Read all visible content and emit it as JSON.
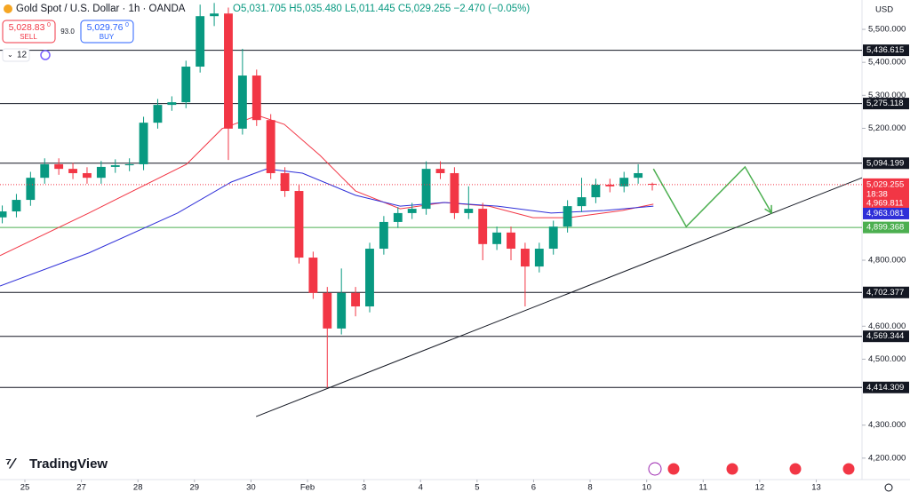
{
  "chart_data": {
    "type": "candlestick",
    "header": {
      "symbol": "Gold Spot / U.S. Dollar · 1h · OANDA",
      "ohlc": "O5,031.705 H5,035.480 L5,011.445 C5,029.255 −2.470 (−0.05%)",
      "sell_price": "5,028.83",
      "sell_sup": "0",
      "sell": "SELL",
      "spread": "93.0",
      "buy_price": "5,029.76",
      "buy_sup": "0",
      "buy": "BUY",
      "indicators": "12",
      "currency": "USD",
      "brand": "TradingView"
    },
    "xlim": [
      -0.44,
      14.81
    ],
    "ylim": [
      4135,
      5589
    ],
    "xticks": [
      {
        "value": 0,
        "label": "25"
      },
      {
        "value": 1,
        "label": "27"
      },
      {
        "value": 2,
        "label": "28"
      },
      {
        "value": 3,
        "label": "29"
      },
      {
        "value": 4,
        "label": "30"
      },
      {
        "value": 5,
        "label": "Feb"
      },
      {
        "value": 6,
        "label": "3"
      },
      {
        "value": 7,
        "label": "4"
      },
      {
        "value": 8,
        "label": "5"
      },
      {
        "value": 9,
        "label": "6"
      },
      {
        "value": 10,
        "label": "8"
      },
      {
        "value": 11,
        "label": "10"
      },
      {
        "value": 12,
        "label": "11"
      },
      {
        "value": 13,
        "label": "12"
      },
      {
        "value": 14,
        "label": "13"
      }
    ],
    "yticks": [
      {
        "value": 5500,
        "label": "5,500.000"
      },
      {
        "value": 5400,
        "label": "5,400.000"
      },
      {
        "value": 5300,
        "label": "5,300.000"
      },
      {
        "value": 5200,
        "label": "5,200.000"
      },
      {
        "value": 4800,
        "label": "4,800.000"
      },
      {
        "value": 4600,
        "label": "4,600.000"
      },
      {
        "value": 4500,
        "label": "4,500.000"
      },
      {
        "value": 4300,
        "label": "4,300.000"
      },
      {
        "value": 4200,
        "label": "4,200.000"
      }
    ],
    "up_color": "#089981",
    "down_color": "#f23645",
    "x": [
      -0.4,
      -0.15,
      0.1,
      0.35,
      0.6,
      0.85,
      1.1,
      1.35,
      1.6,
      1.85,
      2.1,
      2.35,
      2.6,
      2.85,
      3.1,
      3.35,
      3.6,
      3.85,
      4.1,
      4.35,
      4.6,
      4.85,
      5.1,
      5.35,
      5.6,
      5.85,
      6.1,
      6.35,
      6.6,
      6.85,
      7.1,
      7.35,
      7.6,
      7.85,
      8.1,
      8.35,
      8.6,
      8.85,
      9.1,
      9.35,
      9.6,
      9.85,
      10.1,
      10.35,
      10.6,
      10.85,
      11.1
    ],
    "open": [
      4930,
      4948,
      4983,
      5050,
      5091,
      5077,
      5064,
      5050,
      5083,
      5088,
      5091,
      5217,
      5271,
      5279,
      5387,
      5540,
      5548,
      5199,
      5360,
      5225,
      5064,
      5010,
      4808,
      4701,
      4593,
      4701,
      4660,
      4835,
      4916,
      4943,
      4956,
      5077,
      5064,
      4943,
      4956,
      4849,
      4884,
      4835,
      4781,
      4835,
      4902,
      4964,
      4991,
      5029,
      5024,
      5050,
      5031.705
    ],
    "high": [
      4966,
      5001,
      5068,
      5109,
      5109,
      5095,
      5082,
      5101,
      5106,
      5109,
      5235,
      5289,
      5297,
      5405,
      5575,
      5580,
      5566,
      5441,
      5378,
      5243,
      5082,
      5028,
      4826,
      4719,
      4775,
      4719,
      4853,
      4934,
      4961,
      4974,
      5100,
      5100,
      5082,
      5024,
      4974,
      4902,
      4902,
      4853,
      4853,
      4920,
      4982,
      5050,
      5047,
      5047,
      5068,
      5091,
      5035.48
    ],
    "low": [
      4912,
      4930,
      4965,
      5032,
      5059,
      5046,
      5032,
      5032,
      5065,
      5070,
      5073,
      5199,
      5253,
      5261,
      5369,
      5510,
      5104,
      5181,
      5207,
      5046,
      4992,
      4790,
      4683,
      4414,
      4575,
      4630,
      4642,
      4817,
      4898,
      4925,
      4938,
      5046,
      4925,
      4925,
      4800,
      4831,
      4800,
      4660,
      4763,
      4817,
      4884,
      4946,
      4973,
      5006,
      5006,
      5032,
      5011.445
    ],
    "close": [
      4948,
      4983,
      5050,
      5091,
      5077,
      5064,
      5050,
      5083,
      5088,
      5091,
      5217,
      5271,
      5279,
      5387,
      5540,
      5548,
      5199,
      5360,
      5225,
      5064,
      5010,
      4808,
      4701,
      4593,
      4701,
      4660,
      4835,
      4916,
      4943,
      4956,
      5077,
      5064,
      4943,
      4956,
      4849,
      4884,
      4835,
      4781,
      4835,
      4902,
      4964,
      4991,
      5029,
      5024,
      5050,
      5064,
      5029.255
    ],
    "last_price": {
      "value": 5029.255,
      "label": "5,029.255",
      "countdown": "18:38"
    },
    "series": [
      {
        "color": "#f23645",
        "x": [
          -0.44,
          1.13,
          2.86,
          3.49,
          4.12,
          4.59,
          5.22,
          5.85,
          6.64,
          7.42,
          8.21,
          8.99,
          9.62,
          10.57,
          11.12
        ],
        "values": [
          4814,
          4943,
          5091,
          5199,
          5239,
          5212,
          5118,
          5010,
          4956,
          4975,
          4964,
          4929,
          4929,
          4951,
          4970
        ],
        "price_tag": {
          "value": 4969.811,
          "label": "4,969.811"
        }
      },
      {
        "color": "#2f2fd8",
        "x": [
          -0.44,
          1.13,
          2.7,
          3.65,
          4.28,
          4.91,
          5.85,
          6.64,
          7.42,
          8.36,
          9.31,
          10.25,
          11.12
        ],
        "values": [
          4722,
          4822,
          4943,
          5037,
          5077,
          5064,
          4997,
          4964,
          4975,
          4964,
          4943,
          4951,
          4964
        ],
        "price_tag": {
          "value": 4963.081,
          "label": "4,963.081"
        }
      }
    ],
    "levels": [
      {
        "value": 5436.615,
        "label": "5,436.615",
        "color": "#131722"
      },
      {
        "value": 5275.118,
        "label": "5,275.118",
        "color": "#131722"
      },
      {
        "value": 5094.199,
        "label": "5,094.199",
        "color": "#131722"
      },
      {
        "value": 4899.368,
        "label": "4,899.368",
        "color": "#4caf50"
      },
      {
        "value": 4702.377,
        "label": "4,702.377",
        "color": "#131722"
      },
      {
        "value": 4569.344,
        "label": "4,569.344",
        "color": "#131722"
      },
      {
        "value": 4414.309,
        "label": "4,414.309",
        "color": "#131722"
      }
    ],
    "trendline": {
      "color": "#131722",
      "x": [
        4.09,
        14.81
      ],
      "values": [
        4326,
        5050
      ]
    },
    "projection": {
      "color": "#4caf50",
      "x": [
        11.12,
        11.7,
        12.74,
        13.21
      ],
      "values": [
        5077,
        4902,
        5083,
        4943
      ]
    }
  }
}
